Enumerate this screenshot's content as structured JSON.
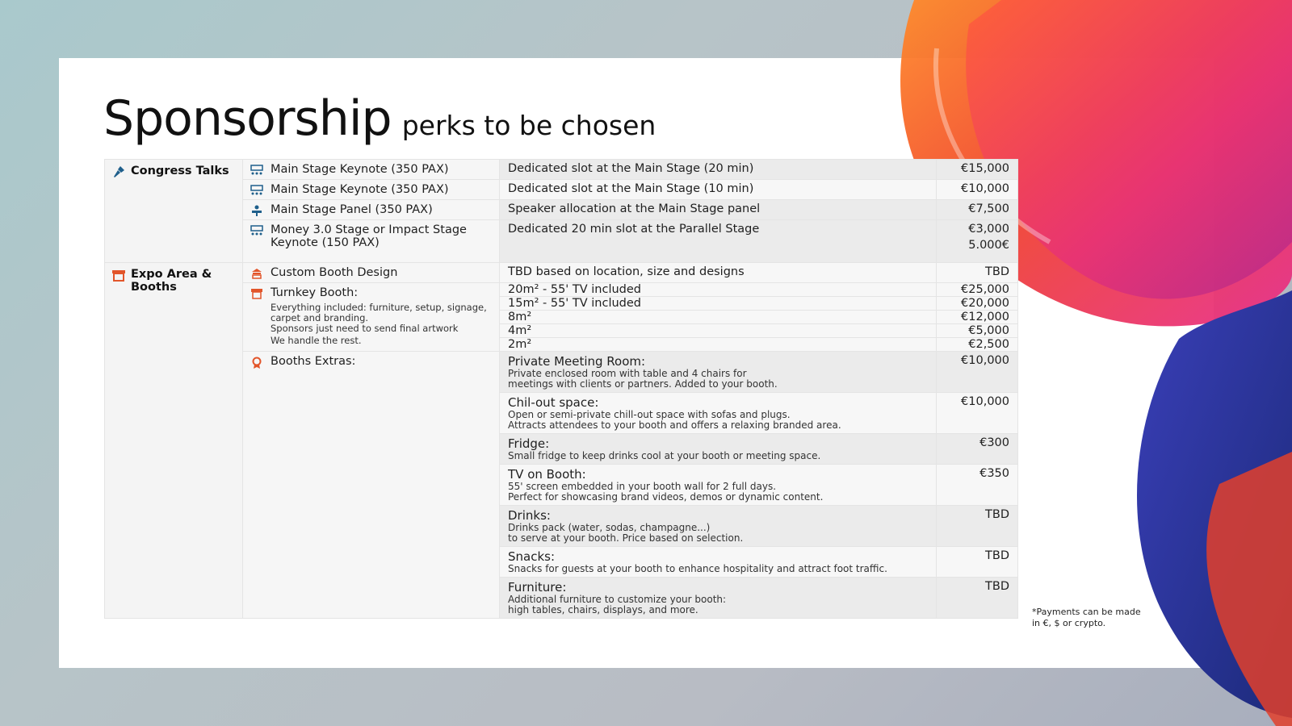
{
  "title": {
    "main": "Sponsorship",
    "sub": "perks to be chosen"
  },
  "categories": {
    "talks": {
      "label": "Congress Talks"
    },
    "expo": {
      "label": "Expo Area & Booths"
    }
  },
  "talks": [
    {
      "item": "Main Stage Keynote (350 PAX)",
      "desc": "Dedicated slot at the Main Stage (20 min)",
      "price": "€15,000"
    },
    {
      "item": "Main Stage Keynote (350 PAX)",
      "desc": "Dedicated slot at the Main Stage (10 min)",
      "price": "€10,000"
    },
    {
      "item": "Main Stage Panel (350 PAX)",
      "desc": "Speaker allocation at the Main Stage panel",
      "price": "€7,500"
    },
    {
      "item": "Money 3.0 Stage or Impact Stage Keynote (150 PAX)",
      "desc": "Dedicated 20 min slot at the Parallel Stage",
      "price": "€3,000",
      "price2": "5.000€"
    }
  ],
  "expo": {
    "custom_booth": {
      "item": "Custom Booth Design",
      "desc": "TBD based on location, size and designs",
      "price": "TBD"
    },
    "turnkey": {
      "item": "Turnkey Booth:",
      "note1": "Everything included: furniture, setup, signage, carpet and branding.",
      "note2": "Sponsors just need to send final artwork",
      "note3": "We handle the rest.",
      "sizes": [
        {
          "desc": "20m² - 55' TV included",
          "price": "€25,000"
        },
        {
          "desc": "15m² - 55' TV included",
          "price": "€20,000"
        },
        {
          "desc": "8m²",
          "price": "€12,000"
        },
        {
          "desc": "4m²",
          "price": "€5,000"
        },
        {
          "desc": "2m²",
          "price": "€2,500"
        }
      ]
    },
    "extras": {
      "item": "Booths Extras:",
      "rows": [
        {
          "title": "Private Meeting Room:",
          "sub1": "Private enclosed room with table and 4 chairs for",
          "sub2": "meetings with clients or partners. Added to your booth.",
          "price": "€10,000"
        },
        {
          "title": "Chil-out space:",
          "sub1": "Open or semi-private chill-out space with sofas and plugs.",
          "sub2": "Attracts attendees to your booth and offers a relaxing branded area.",
          "price": "€10,000"
        },
        {
          "title": "Fridge:",
          "sub1": "Small fridge to keep drinks cool at your booth or meeting space.",
          "sub2": "",
          "price": "€300"
        },
        {
          "title": "TV on Booth:",
          "sub1": "55' screen embedded in your booth wall for 2 full days.",
          "sub2": "Perfect for showcasing brand videos, demos or dynamic content.",
          "price": "€350"
        },
        {
          "title": "Drinks:",
          "sub1": "Drinks pack (water, sodas, champagne...)",
          "sub2": "to serve at your booth. Price based on selection.",
          "price": "TBD"
        },
        {
          "title": "Snacks:",
          "sub1": "Snacks for guests at your booth to enhance hospitality and attract foot traffic.",
          "sub2": "",
          "price": "TBD"
        },
        {
          "title": "Furniture:",
          "sub1": "Additional furniture to customize your booth:",
          "sub2": "high tables, chairs, displays, and more.",
          "price": "TBD"
        }
      ]
    }
  },
  "footnote": "*Payments can be made in €, $ or crypto.",
  "colors": {
    "talks_icon": "#1f5f8b",
    "expo_icon": "#e2552a",
    "accent_orange": "#f05a28"
  }
}
